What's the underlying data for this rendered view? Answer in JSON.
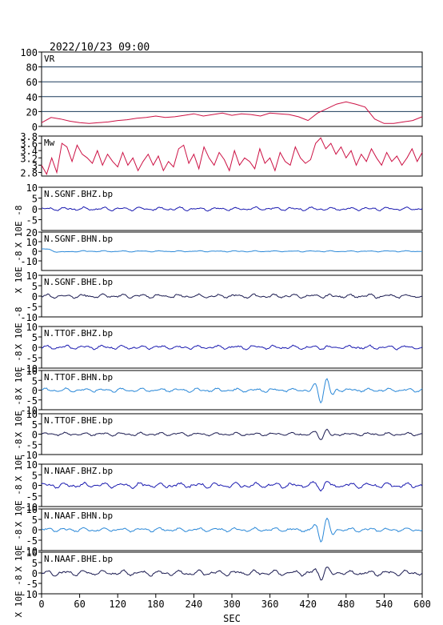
{
  "title": "2022/10/23 09:00",
  "chart_data": {
    "type": "line",
    "xlabel": "SEC",
    "xlim": [
      0,
      600
    ],
    "xticks": [
      0,
      60,
      120,
      180,
      240,
      300,
      360,
      420,
      480,
      540,
      600
    ],
    "ylabel_wave": "X 10E -8",
    "panels": [
      {
        "label": "VR",
        "ylim": [
          0,
          100
        ],
        "yticks": [
          0,
          20,
          40,
          60,
          80,
          100
        ],
        "grid": true,
        "color": "#cc1144",
        "series": [
          {
            "x": [
              0,
              15,
              30,
              45,
              60,
              75,
              90,
              105,
              120,
              135,
              150,
              165,
              180,
              195,
              210,
              225,
              240,
              255,
              270,
              285,
              300,
              315,
              330,
              345,
              360,
              375,
              390,
              405,
              420,
              435,
              450,
              465,
              480,
              495,
              510,
              525,
              540,
              555,
              570,
              585,
              600
            ],
            "y": [
              5,
              12,
              10,
              7,
              5,
              4,
              5,
              6,
              8,
              9,
              11,
              12,
              14,
              12,
              13,
              15,
              17,
              14,
              16,
              18,
              15,
              17,
              16,
              14,
              18,
              17,
              16,
              13,
              8,
              18,
              24,
              30,
              33,
              30,
              26,
              10,
              4,
              4,
              6,
              8,
              13
            ]
          }
        ]
      },
      {
        "label": "Mw",
        "ylim": [
          2.7,
          3.8
        ],
        "yticks": [
          2.8,
          3.0,
          3.2,
          3.4,
          3.6,
          3.8
        ],
        "grid": false,
        "color": "#cc1144",
        "series": [
          {
            "x": [
              0,
              8,
              16,
              24,
              32,
              40,
              48,
              56,
              64,
              72,
              80,
              88,
              96,
              104,
              112,
              120,
              128,
              136,
              144,
              152,
              160,
              168,
              176,
              184,
              192,
              200,
              208,
              216,
              224,
              232,
              240,
              248,
              256,
              264,
              272,
              280,
              288,
              296,
              304,
              312,
              320,
              328,
              336,
              344,
              352,
              360,
              368,
              376,
              384,
              392,
              400,
              408,
              416,
              424,
              432,
              440,
              448,
              456,
              464,
              472,
              480,
              488,
              496,
              504,
              512,
              520,
              528,
              536,
              544,
              552,
              560,
              568,
              576,
              584,
              592,
              600
            ],
            "y": [
              3.0,
              2.75,
              3.2,
              2.8,
              3.6,
              3.5,
              3.1,
              3.55,
              3.3,
              3.2,
              3.05,
              3.4,
              3.0,
              3.3,
              3.1,
              2.95,
              3.35,
              3.0,
              3.2,
              2.85,
              3.1,
              3.3,
              3.0,
              3.25,
              2.85,
              3.1,
              2.95,
              3.45,
              3.55,
              3.05,
              3.3,
              2.9,
              3.5,
              3.2,
              3.0,
              3.35,
              3.15,
              2.85,
              3.4,
              3.0,
              3.2,
              3.1,
              2.9,
              3.45,
              3.05,
              3.2,
              2.85,
              3.35,
              3.1,
              3.0,
              3.5,
              3.2,
              3.05,
              3.15,
              3.6,
              3.75,
              3.45,
              3.6,
              3.3,
              3.5,
              3.2,
              3.4,
              3.0,
              3.3,
              3.1,
              3.45,
              3.2,
              3.0,
              3.35,
              3.1,
              3.25,
              3.0,
              3.2,
              3.45,
              3.1,
              3.35
            ]
          }
        ]
      },
      {
        "label": "N.SGNF.BHZ.bp",
        "ylim": [
          -10,
          10
        ],
        "yticks": [
          -5,
          0,
          5,
          10
        ],
        "color": "#1a1ab0",
        "event": 0.0,
        "eventAmp": 0,
        "noise": 0.5
      },
      {
        "label": "N.SGNF.BHN.bp",
        "ylim": [
          -20,
          20
        ],
        "yticks": [
          -10,
          0,
          10,
          20
        ],
        "color": "#2a88d8",
        "event": 0.0,
        "eventAmp": 0,
        "noise": 0.4,
        "onset": 3
      },
      {
        "label": "N.SGNF.BHE.bp",
        "ylim": [
          -10,
          10
        ],
        "yticks": [
          -10,
          -5,
          0,
          5,
          10
        ],
        "color": "#1a1a50",
        "event": 0.0,
        "eventAmp": 0,
        "noise": 0.6
      },
      {
        "label": "N.TTOF.BHZ.bp",
        "ylim": [
          -10,
          10
        ],
        "yticks": [
          -10,
          -5,
          0,
          5,
          10
        ],
        "color": "#1a1ab0",
        "event": 0.0,
        "eventAmp": 0,
        "noise": 0.6
      },
      {
        "label": "N.TTOF.BHN.bp",
        "ylim": [
          -10,
          10
        ],
        "yticks": [
          -10,
          -5,
          0,
          5,
          10
        ],
        "color": "#2a88d8",
        "event": 445,
        "eventAmp": 6,
        "noise": 0.6
      },
      {
        "label": "N.TTOF.BHE.bp",
        "ylim": [
          -10,
          10
        ],
        "yticks": [
          -10,
          -5,
          0,
          5,
          10
        ],
        "color": "#1a1a50",
        "event": 445,
        "eventAmp": 2.5,
        "noise": 0.5
      },
      {
        "label": "N.NAAF.BHZ.bp",
        "ylim": [
          -10,
          10
        ],
        "yticks": [
          -10,
          -5,
          0,
          5,
          10
        ],
        "color": "#1a1ab0",
        "event": 445,
        "eventAmp": 2.5,
        "noise": 0.8
      },
      {
        "label": "N.NAAF.BHN.bp",
        "ylim": [
          -10,
          10
        ],
        "yticks": [
          -10,
          -5,
          0,
          5,
          10
        ],
        "color": "#2a88d8",
        "event": 445,
        "eventAmp": 6,
        "noise": 0.6
      },
      {
        "label": "N.NAAF.BHE.bp",
        "ylim": [
          -10,
          10
        ],
        "yticks": [
          -10,
          -5,
          0,
          5,
          10
        ],
        "color": "#1a1a50",
        "event": 445,
        "eventAmp": 3,
        "noise": 0.8
      }
    ]
  }
}
